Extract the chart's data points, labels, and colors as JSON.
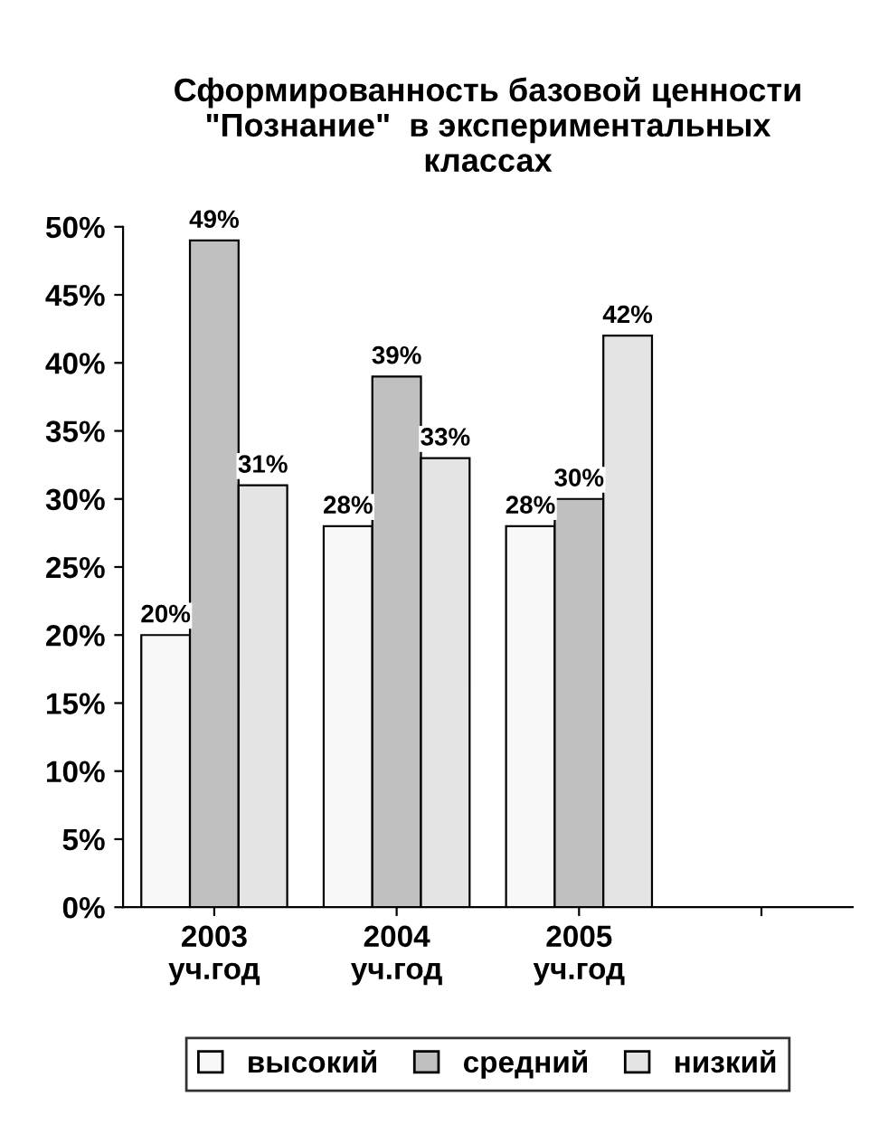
{
  "chart_data": {
    "type": "bar",
    "title": "Сформированность базовой ценности\n\"Познание\"  в экспериментальных\nклассах",
    "categories": [
      "2003\nуч.год",
      "2004\nуч.год",
      "2005\nуч.год",
      null
    ],
    "series": [
      {
        "name": "высокий",
        "color": "#f8f8f8",
        "values": [
          20,
          28,
          28,
          null
        ],
        "value_labels": [
          "20%",
          "28%",
          "28%",
          null
        ]
      },
      {
        "name": "средний",
        "color": "#c0c0c0",
        "values": [
          49,
          39,
          30,
          null
        ],
        "value_labels": [
          "49%",
          "39%",
          "30%",
          null
        ]
      },
      {
        "name": "низкий",
        "color": "#e4e4e4",
        "values": [
          31,
          33,
          42,
          null
        ],
        "value_labels": [
          "31%",
          "33%",
          "42%",
          null
        ]
      }
    ],
    "ylim": [
      0,
      50
    ],
    "yticks": [
      {
        "value": 0,
        "label": "0%"
      },
      {
        "value": 5,
        "label": "5%"
      },
      {
        "value": 10,
        "label": "10%"
      },
      {
        "value": 15,
        "label": "15%"
      },
      {
        "value": 20,
        "label": "20%"
      },
      {
        "value": 25,
        "label": "25%"
      },
      {
        "value": 30,
        "label": "30%"
      },
      {
        "value": 35,
        "label": "35%"
      },
      {
        "value": 40,
        "label": "40%"
      },
      {
        "value": 45,
        "label": "45%"
      },
      {
        "value": 50,
        "label": "50%"
      }
    ],
    "grid": false,
    "legend": "bottom"
  }
}
